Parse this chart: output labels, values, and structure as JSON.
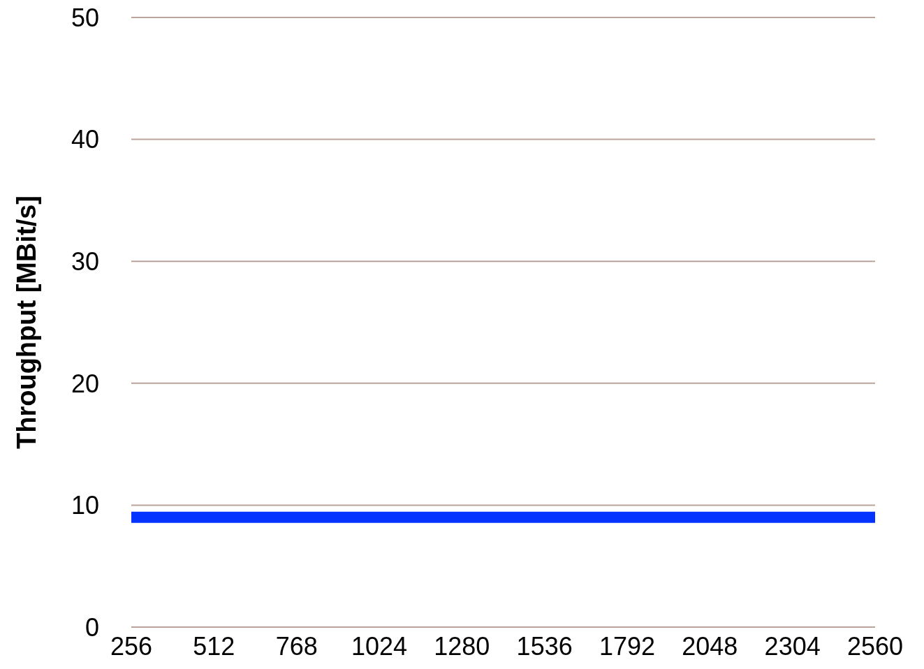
{
  "chart_data": {
    "type": "line",
    "ylabel": "Throughput [MBit/s]",
    "categories": [
      "256",
      "512",
      "768",
      "1024",
      "1280",
      "1536",
      "1792",
      "2048",
      "2304",
      "2560"
    ],
    "series": [
      {
        "color": "#0433ff",
        "values": [
          9,
          9,
          9,
          9,
          9,
          9,
          9,
          9,
          9,
          9
        ]
      }
    ],
    "ylim": [
      0,
      50
    ],
    "yticks": [
      0,
      10,
      20,
      30,
      40,
      50
    ],
    "grid": "y",
    "marker": "none",
    "line_style": "solid"
  }
}
